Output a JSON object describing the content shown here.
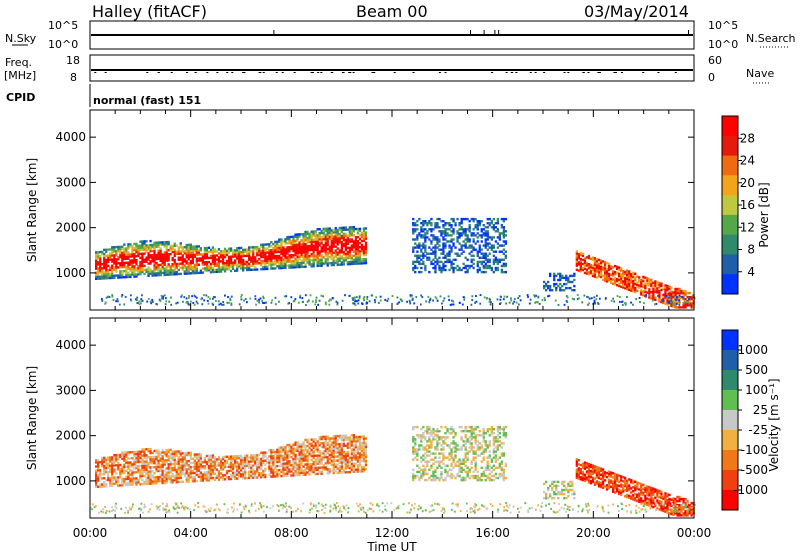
{
  "header": {
    "station": "Halley (fitACF)",
    "beam": "Beam 00",
    "date": "03/May/2014"
  },
  "strips": {
    "nsky_label": "N.Sky",
    "nsky_ticks": [
      "10^5",
      "10^0"
    ],
    "nsearch_label": "N.Search",
    "nsearch_ticks": [
      "10^5",
      "10^0"
    ],
    "freq_label_1": "Freq.",
    "freq_label_2": "[MHz]",
    "freq_ticks": [
      "18",
      "8"
    ],
    "nave_label": "Nave",
    "nave_ticks": [
      "60",
      "0"
    ],
    "cpid_label": "CPID",
    "cpid_value": "normal (fast) 151"
  },
  "colors": {
    "power_scale": [
      "#0033ff",
      "#1f5fa8",
      "#2e8a6a",
      "#54a84a",
      "#bfc940",
      "#f2a51a",
      "#f06a10",
      "#e41a0a",
      "#ff0000"
    ],
    "velocity_scale": [
      "#ff0000",
      "#f04010",
      "#f07818",
      "#f2b040",
      "#c8c8c8",
      "#5fbf4f",
      "#2e8a6a",
      "#1f5fa8",
      "#0033ff"
    ]
  },
  "chart_data": [
    {
      "type": "heatmap",
      "panel": "power",
      "ylabel": "Slant Range [km]",
      "yticks": [
        "1000",
        "2000",
        "3000",
        "4000"
      ],
      "ylim": [
        180,
        4600
      ],
      "xlim_hours": [
        0,
        24
      ],
      "colorbar_label": "Power [dB]",
      "colorbar_ticks": [
        "4",
        "8",
        "12",
        "16",
        "20",
        "24",
        "28"
      ],
      "colorbar_range": [
        0,
        32
      ],
      "echo_regions": [
        {
          "t_start": 0.2,
          "t_end": 11.0,
          "range_lo": 900,
          "range_hi": 1900,
          "level": "mixed"
        },
        {
          "t_start": 12.8,
          "t_end": 16.5,
          "range_lo": 1000,
          "range_hi": 2200,
          "level": "low"
        },
        {
          "t_start": 18.0,
          "t_end": 19.2,
          "range_lo": 600,
          "range_hi": 1000,
          "level": "low"
        },
        {
          "t_start": 19.3,
          "t_end": 24.0,
          "range_lo": 250,
          "range_hi": 1600,
          "level": "high"
        }
      ]
    },
    {
      "type": "heatmap",
      "panel": "velocity",
      "ylabel": "Slant Range [km]",
      "yticks": [
        "1000",
        "2000",
        "3000",
        "4000"
      ],
      "ylim": [
        180,
        4600
      ],
      "xlim_hours": [
        0,
        24
      ],
      "colorbar_label": "Velocity [m s⁻¹]",
      "colorbar_ticks": [
        "1000",
        "500",
        "100",
        "25",
        "-25",
        "-100",
        "-500",
        "-1000"
      ],
      "xticks": [
        "00:00",
        "04:00",
        "08:00",
        "12:00",
        "16:00",
        "20:00",
        "00:00"
      ],
      "xlabel": "Time UT"
    }
  ]
}
